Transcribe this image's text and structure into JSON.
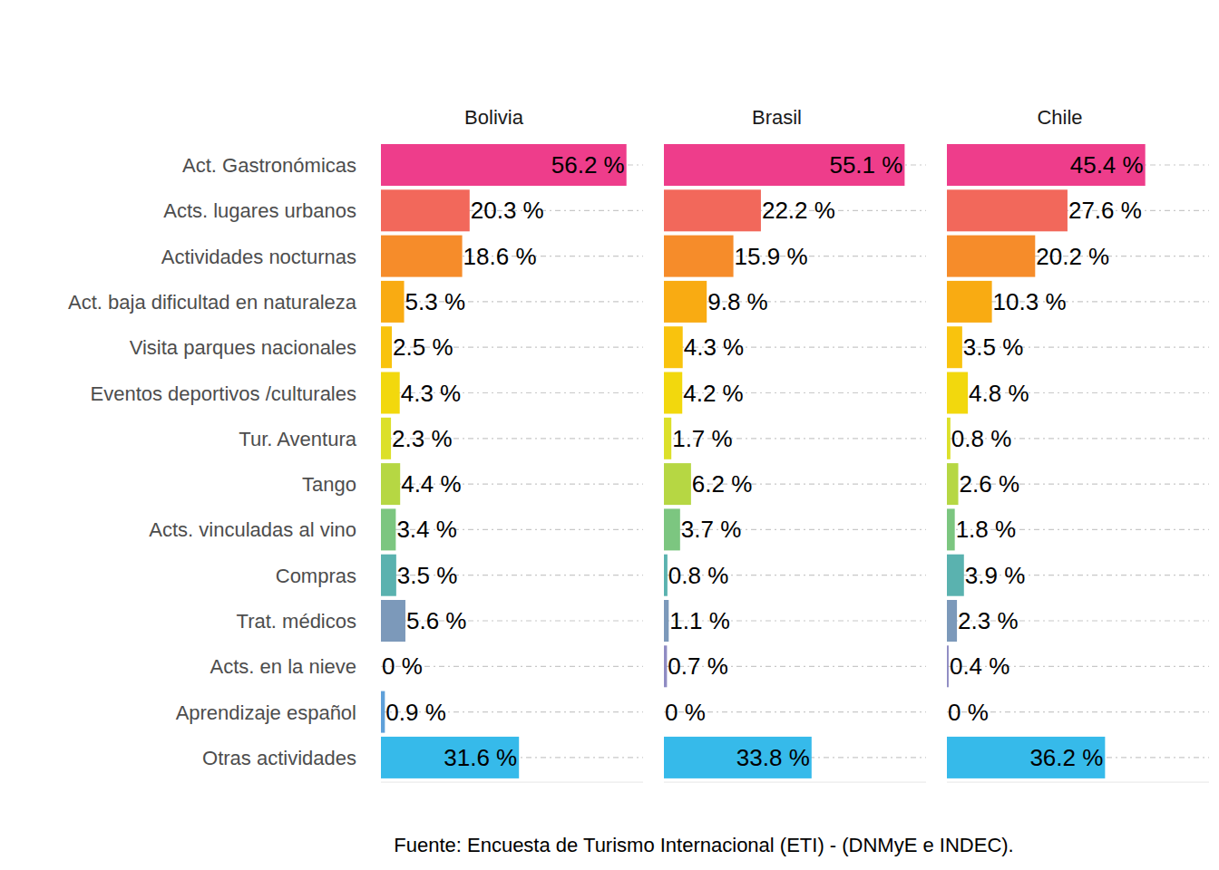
{
  "chart_data": {
    "type": "bar",
    "orientation": "horizontal",
    "caption": "Fuente: Encuesta de Turismo Internacional (ETI) - (DNMyE e INDEC).",
    "categories": [
      "Act. Gastronómicas",
      "Acts. lugares urbanos",
      "Actividades nocturnas",
      "Act. baja dificultad en naturaleza",
      "Visita parques nacionales",
      "Eventos deportivos /culturales",
      "Tur. Aventura",
      "Tango",
      "Acts. vinculadas al vino",
      "Compras",
      "Trat. médicos",
      "Acts. en la nieve",
      "Aprendizaje español",
      "Otras actividades"
    ],
    "colors": [
      "#EE3D8B",
      "#F2685B",
      "#F68C2A",
      "#F9AB12",
      "#F9C30D",
      "#F2D80D",
      "#DCE02A",
      "#B6D743",
      "#7CC680",
      "#5AB2AF",
      "#7C99BA",
      "#8F8BC3",
      "#5FA0D9",
      "#36BAEA"
    ],
    "series": [
      {
        "name": "Bolivia",
        "values": [
          56.2,
          20.3,
          18.6,
          5.3,
          2.5,
          4.3,
          2.3,
          4.4,
          3.4,
          3.5,
          5.6,
          0,
          0.9,
          31.6
        ],
        "value_labels": [
          "56.2 %",
          "20.3 %",
          "18.6 %",
          "5.3 %",
          "2.5 %",
          "4.3 %",
          "2.3 %",
          "4.4 %",
          "3.4 %",
          "3.5 %",
          "5.6 %",
          "0 %",
          "0.9 %",
          "31.6 %"
        ]
      },
      {
        "name": "Brasil",
        "values": [
          55.1,
          22.2,
          15.9,
          9.8,
          4.3,
          4.2,
          1.7,
          6.2,
          3.7,
          0.8,
          1.1,
          0.7,
          0,
          33.8
        ],
        "value_labels": [
          "55.1 %",
          "22.2 %",
          "15.9 %",
          "9.8 %",
          "4.3 %",
          "4.2 %",
          "1.7 %",
          "6.2 %",
          "3.7 %",
          "0.8 %",
          "1.1 %",
          "0.7 %",
          "0 %",
          "33.8 %"
        ]
      },
      {
        "name": "Chile",
        "values": [
          45.4,
          27.6,
          20.2,
          10.3,
          3.5,
          4.8,
          0.8,
          2.6,
          1.8,
          3.9,
          2.3,
          0.4,
          0,
          36.2
        ],
        "value_labels": [
          "45.4 %",
          "27.6 %",
          "20.2 %",
          "10.3 %",
          "3.5 %",
          "4.8 %",
          "0.8 %",
          "2.6 %",
          "1.8 %",
          "3.9 %",
          "2.3 %",
          "0.4 %",
          "0 %",
          "36.2 %"
        ]
      }
    ],
    "xlim": [
      0,
      60
    ],
    "grid": true,
    "data_labels": true,
    "tick_labels": "y"
  }
}
